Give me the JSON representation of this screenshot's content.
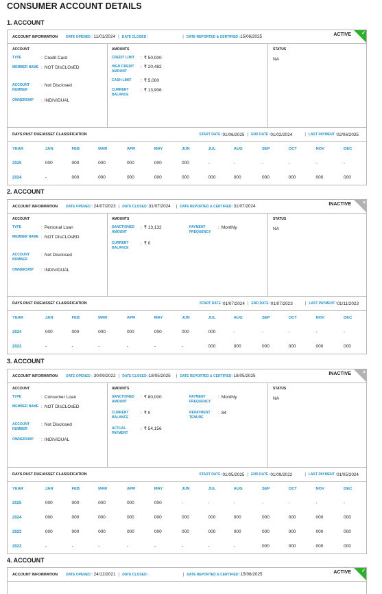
{
  "page_title": "CONSUMER ACCOUNT DETAILS",
  "labels": {
    "account_information": "ACCOUNT INFORMATION",
    "date_opened": "DATE OPENED :",
    "date_closed": "DATE CLOSED :",
    "date_reported": "DATE REPORTED & CERTIFIED :",
    "account": "ACCOUNT",
    "amounts": "AMOUNTS",
    "status": "STATUS",
    "type": "TYPE",
    "member_name": "MEMBER NAME",
    "account_number": "ACCOUNT NUMBER",
    "ownership": "OWNERSHIP",
    "dpd": "DAYS PAST DUE/ASSET CLASSIFICATION",
    "start_date": "START DATE :",
    "end_date": "END DATE :",
    "last_payment": "LAST PAYMENT :",
    "months": [
      "YEAR",
      "JAN",
      "FEB",
      "MAR",
      "APR",
      "MAY",
      "JUN",
      "JUL",
      "AUG",
      "SEP",
      "OCT",
      "NOV",
      "DEC"
    ]
  },
  "colors": {
    "accent_blue": "#1f8fc7",
    "active_green": "#2eaf2e",
    "inactive_grey": "#b2b2b2"
  },
  "accounts": [
    {
      "heading": "1. ACCOUNT",
      "date_opened": "11/01/2024",
      "date_closed": "",
      "date_reported": "15/06/2025",
      "status_tag": "ACTIVE",
      "corner_icon": "check-icon",
      "type": "Credit Card",
      "member_name": "NOT DIsCLOsED",
      "account_number": "Not Disclosed",
      "ownership": "INDIVIDUAL",
      "amounts_left": [
        {
          "label": "CREDIT LIMIT",
          "value": "₹ 50,000"
        },
        {
          "label": "HIGH CREDIT AMOUNT",
          "value": "₹ 20,482"
        },
        {
          "label": "CASH LIMIT",
          "value": "₹ 5,000"
        },
        {
          "label": "CURRENT BALANCE",
          "value": "₹ 13,906"
        }
      ],
      "amounts_right": [],
      "status": "NA",
      "start_date": "01/06/2025",
      "end_date": "01/02/2024",
      "last_payment": "02/06/2025",
      "history": [
        {
          "year": "2025",
          "values": [
            "000",
            "000",
            "000",
            "000",
            "000",
            "000",
            "-",
            "-",
            "-",
            "-",
            "-",
            "-"
          ]
        },
        {
          "year": "2024",
          "values": [
            "-",
            "000",
            "000",
            "000",
            "000",
            "000",
            "000",
            "000",
            "000",
            "000",
            "000",
            "000"
          ]
        }
      ]
    },
    {
      "heading": "2. ACCOUNT",
      "date_opened": "24/07/2023",
      "date_closed": "31/07/2024",
      "date_reported": "31/07/2024",
      "status_tag": "INACTIVE",
      "corner_icon": "close-icon",
      "type": "Personal Loan",
      "member_name": "NOT DIsCLOsED",
      "account_number": "Not Disclosed",
      "ownership": "INDIVIDUAL",
      "amounts_left": [
        {
          "label": "SANCTIONED AMOUNT",
          "value": "₹ 13,132"
        },
        {
          "label": "CURRENT BALANCE",
          "value": "₹ 0"
        }
      ],
      "amounts_right": [
        {
          "label": "PAYMENT FREQUENCY",
          "value": "Monthly"
        }
      ],
      "status": "NA",
      "start_date": "01/07/2024",
      "end_date": "01/07/2023",
      "last_payment": "01/11/2023",
      "history": [
        {
          "year": "2024",
          "values": [
            "000",
            "000",
            "000",
            "000",
            "000",
            "000",
            "000",
            "-",
            "-",
            "-",
            "-",
            "-"
          ]
        },
        {
          "year": "2023",
          "values": [
            "-",
            "-",
            "-",
            "-",
            "-",
            "-",
            "000",
            "000",
            "000",
            "000",
            "000",
            "000"
          ]
        }
      ]
    },
    {
      "heading": "3. ACCOUNT",
      "date_opened": "30/09/2022",
      "date_closed": "18/05/2025",
      "date_reported": "18/05/2025",
      "status_tag": "INACTIVE",
      "corner_icon": "close-icon",
      "type": "Consumer Loan",
      "member_name": "NOT DIsCLOsED",
      "account_number": "Not Disclosed",
      "ownership": "INDIVIDUAL",
      "amounts_left": [
        {
          "label": "SANCTIONED AMOUNT",
          "value": "₹ 80,000"
        },
        {
          "label": "CURRENT BALANCE",
          "value": "₹ 0"
        },
        {
          "label": "ACTUAL PAYMENT",
          "value": "₹ 54,156"
        }
      ],
      "amounts_right": [
        {
          "label": "PAYMENT FREQUENCY",
          "value": "Monthly"
        },
        {
          "label": "REPAYMENT TENURE",
          "value": "84"
        }
      ],
      "status": "NA",
      "start_date": "01/05/2025",
      "end_date": "01/09/2022",
      "last_payment": "01/05/2024",
      "history": [
        {
          "year": "2025",
          "values": [
            "000",
            "000",
            "000",
            "000",
            "000",
            "-",
            "-",
            "-",
            "-",
            "-",
            "-",
            "-"
          ]
        },
        {
          "year": "2024",
          "values": [
            "000",
            "000",
            "000",
            "000",
            "000",
            "000",
            "000",
            "000",
            "000",
            "000",
            "000",
            "000"
          ]
        },
        {
          "year": "2023",
          "values": [
            "000",
            "000",
            "000",
            "000",
            "000",
            "000",
            "000",
            "000",
            "000",
            "000",
            "000",
            "000"
          ]
        },
        {
          "year": "2022",
          "values": [
            "-",
            "-",
            "-",
            "-",
            "-",
            "-",
            "-",
            "-",
            "000",
            "000",
            "000",
            "000"
          ]
        }
      ]
    },
    {
      "heading": "4. ACCOUNT",
      "date_opened": "24/12/2021",
      "date_closed": "",
      "date_reported": "15/06/2025",
      "status_tag": "ACTIVE",
      "corner_icon": "check-icon"
    }
  ]
}
